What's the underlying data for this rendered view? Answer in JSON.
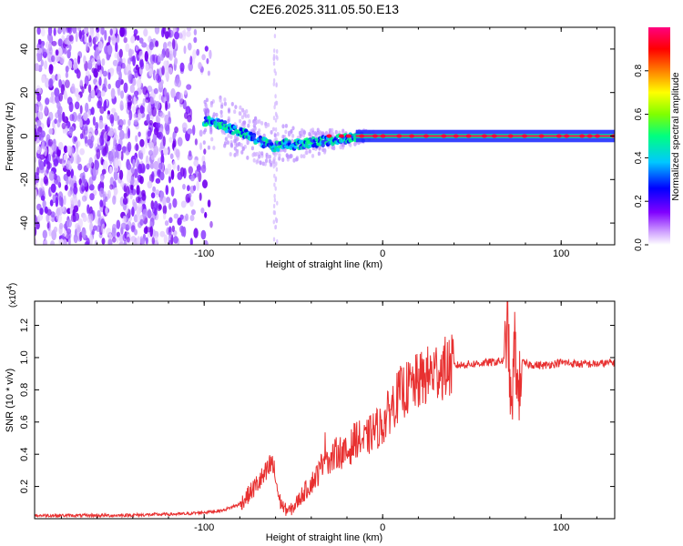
{
  "title": "C2E6.2025.311.05.50.E13",
  "chart_data": [
    {
      "type": "heatmap",
      "name": "spectrogram",
      "xlabel": "Height of straight line (km)",
      "ylabel": "Frequency (Hz)",
      "xlim": [
        -195,
        130
      ],
      "ylim": [
        -50,
        50
      ],
      "xticks": [
        -100,
        0,
        100
      ],
      "yticks": [
        -40,
        -20,
        0,
        20,
        40
      ],
      "xtick_labels": [
        "-100",
        "0",
        "100"
      ],
      "ytick_labels": [
        "-40",
        "-20",
        "0",
        "20",
        "40"
      ],
      "colorbar": {
        "label": "Normalized spectral amplitude",
        "range": [
          0,
          1
        ],
        "ticks": [
          "0.0",
          "0.2",
          "0.4",
          "0.6",
          "0.8"
        ],
        "tick_values": [
          0,
          0.2,
          0.4,
          0.6,
          0.8
        ],
        "colors": [
          "#ffffff",
          "#cfa0ff",
          "#8000ff",
          "#0000ff",
          "#00c8ff",
          "#00ff80",
          "#80ff00",
          "#ffff00",
          "#ff8000",
          "#ff0000",
          "#ff0080"
        ]
      },
      "ridge": {
        "x": [
          -100,
          -90,
          -80,
          -70,
          -60,
          -55,
          -50,
          -40,
          -30,
          -20,
          -10,
          0,
          130
        ],
        "y": [
          7,
          5,
          2,
          -2,
          -5,
          -3,
          -4,
          -3,
          -2,
          -1,
          0,
          0,
          0
        ]
      },
      "noise_region_x": [
        -195,
        -95
      ]
    },
    {
      "type": "line",
      "name": "snr",
      "xlabel": "Height of straight line (km)",
      "ylabel": "SNR (10 * v/v)",
      "scale_label": "(x10^4)",
      "scale_base": "(x10",
      "scale_exponent": "4",
      "scale_close": ")",
      "xlim": [
        -195,
        130
      ],
      "ylim": [
        0,
        1.35
      ],
      "xticks": [
        -100,
        0,
        100
      ],
      "yticks": [
        0.2,
        0.4,
        0.6,
        0.8,
        1.0,
        1.2
      ],
      "xtick_labels": [
        "-100",
        "0",
        "100"
      ],
      "ytick_labels": [
        "0.2",
        "0.4",
        "0.6",
        "0.8",
        "1.0",
        "1.2"
      ],
      "line_color": "#e83030",
      "series": [
        {
          "name": "SNR",
          "x": [
            -195,
            -150,
            -110,
            -90,
            -80,
            -75,
            -70,
            -65,
            -62,
            -60,
            -58,
            -55,
            -52,
            -50,
            -45,
            -40,
            -35,
            -32,
            -30,
            -25,
            -20,
            -15,
            -10,
            -5,
            0,
            5,
            10,
            20,
            30,
            40,
            50,
            60,
            68,
            70,
            72,
            74,
            76,
            78,
            80,
            90,
            100,
            110,
            120,
            130
          ],
          "y": [
            0.02,
            0.02,
            0.03,
            0.05,
            0.09,
            0.15,
            0.22,
            0.28,
            0.35,
            0.25,
            0.12,
            0.06,
            0.05,
            0.07,
            0.15,
            0.22,
            0.3,
            0.45,
            0.35,
            0.42,
            0.4,
            0.5,
            0.48,
            0.55,
            0.58,
            0.7,
            0.78,
            0.85,
            0.92,
            0.95,
            0.96,
            0.97,
            0.98,
            1.25,
            0.6,
            1.1,
            0.75,
            0.97,
            0.96,
            0.95,
            0.97,
            0.96,
            0.96,
            0.97
          ]
        }
      ]
    }
  ]
}
